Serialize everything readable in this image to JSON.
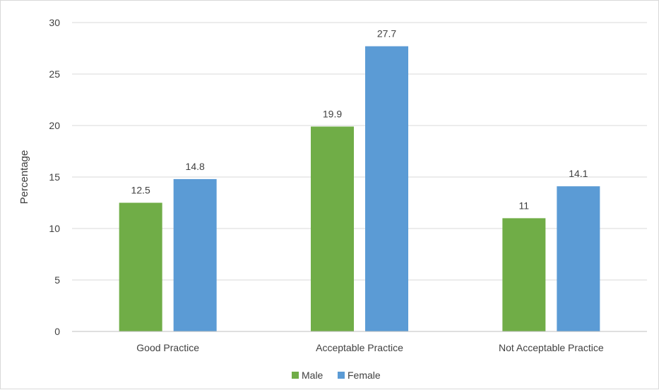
{
  "chart_data": {
    "type": "bar",
    "categories": [
      "Good Practice",
      "Acceptable Practice",
      "Not Acceptable Practice"
    ],
    "series": [
      {
        "name": "Male",
        "values": [
          12.5,
          19.9,
          11
        ],
        "labels": [
          "12.5",
          "19.9",
          "11"
        ],
        "color": "#70ad47"
      },
      {
        "name": "Female",
        "values": [
          14.8,
          27.7,
          14.1
        ],
        "labels": [
          "14.8",
          "27.7",
          "14.1"
        ],
        "color": "#5b9bd5"
      }
    ],
    "title": "",
    "xlabel": "",
    "ylabel": "Percentage",
    "ylim": [
      0,
      30
    ],
    "yticks": [
      0,
      5,
      10,
      15,
      20,
      25,
      30
    ],
    "ytick_labels": [
      "0",
      "5",
      "10",
      "15",
      "20",
      "25",
      "30"
    ],
    "grid": true,
    "legend_position": "bottom"
  }
}
